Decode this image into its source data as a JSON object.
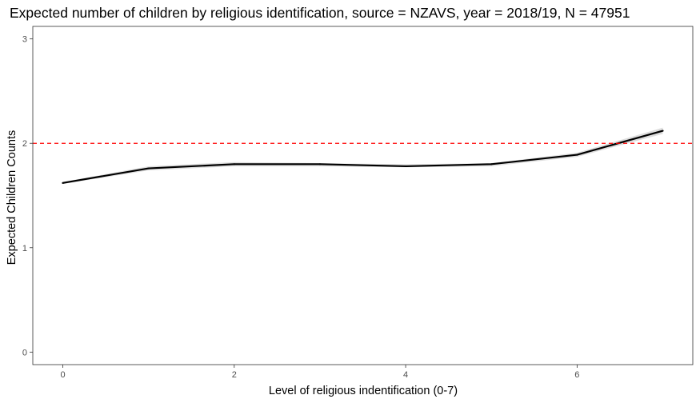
{
  "chart_data": {
    "type": "line",
    "title": "Expected number of children by religious identification, source = NZAVS, year = 2018/19, N = 47951",
    "xlabel": "Level of religious indentification (0-7)",
    "ylabel": "Expected Children Counts",
    "x": [
      0,
      1,
      2,
      3,
      4,
      5,
      6,
      7
    ],
    "series": [
      {
        "values": [
          1.62,
          1.76,
          1.8,
          1.8,
          1.78,
          1.8,
          1.89,
          2.12
        ],
        "ci_lower": [
          1.61,
          1.74,
          1.78,
          1.78,
          1.77,
          1.78,
          1.87,
          2.09
        ],
        "ci_upper": [
          1.63,
          1.78,
          1.82,
          1.81,
          1.8,
          1.81,
          1.91,
          2.15
        ],
        "color": "#000000",
        "band_color": "#d9d9d9"
      }
    ],
    "reference_line": {
      "y": 2,
      "color": "#ff0000",
      "style": "dashed"
    },
    "xlim": [
      -0.35,
      7.35
    ],
    "ylim": [
      -0.12,
      3.12
    ],
    "x_ticks": [
      0,
      2,
      4,
      6
    ],
    "x_tick_labels": [
      "0",
      "2",
      "4",
      "6"
    ],
    "y_ticks": [
      0,
      1,
      2,
      3
    ],
    "y_tick_labels": [
      "0",
      "1",
      "2",
      "3"
    ],
    "grid": false,
    "legend": "none"
  }
}
